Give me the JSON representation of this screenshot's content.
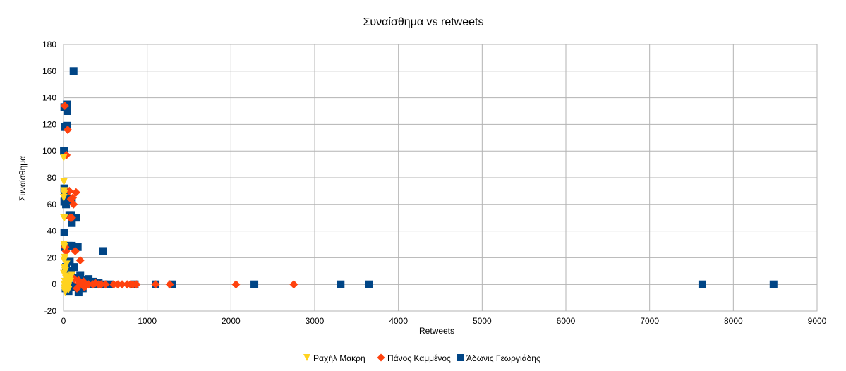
{
  "chart_data": {
    "type": "scatter",
    "title": "Συναίσθημα vs retweets",
    "xlabel": "Retweets",
    "ylabel": "Συναίσθημα",
    "xlim": [
      0,
      9000
    ],
    "ylim": [
      -20,
      180
    ],
    "xticks": [
      0,
      1000,
      2000,
      3000,
      4000,
      5000,
      6000,
      7000,
      8000,
      9000
    ],
    "yticks": [
      -20,
      0,
      20,
      40,
      60,
      80,
      100,
      120,
      140,
      160,
      180
    ],
    "grid": true,
    "legend_position": "bottom",
    "series": [
      {
        "name": "Ραχήλ Μακρή",
        "color": "#ffd320",
        "marker": "triangle-down",
        "points": [
          [
            2,
            95
          ],
          [
            5,
            77
          ],
          [
            8,
            70
          ],
          [
            10,
            68
          ],
          [
            3,
            65
          ],
          [
            12,
            50
          ],
          [
            4,
            50
          ],
          [
            6,
            30
          ],
          [
            9,
            28
          ],
          [
            7,
            18
          ],
          [
            15,
            12
          ],
          [
            20,
            10
          ],
          [
            5,
            8
          ],
          [
            25,
            6
          ],
          [
            30,
            4
          ],
          [
            18,
            2
          ],
          [
            10,
            0
          ],
          [
            40,
            -1
          ],
          [
            55,
            -2
          ],
          [
            12,
            -3
          ],
          [
            20,
            -5
          ],
          [
            70,
            5
          ],
          [
            100,
            7
          ],
          [
            60,
            -4
          ],
          [
            35,
            15
          ],
          [
            45,
            3
          ],
          [
            22,
            -6
          ],
          [
            80,
            2
          ],
          [
            15,
            20
          ],
          [
            50,
            0
          ]
        ]
      },
      {
        "name": "Πάνος Καμμένος",
        "color": "#ff420e",
        "marker": "diamond",
        "points": [
          [
            15,
            134
          ],
          [
            50,
            116
          ],
          [
            35,
            97
          ],
          [
            70,
            70
          ],
          [
            150,
            69
          ],
          [
            90,
            64
          ],
          [
            110,
            65
          ],
          [
            120,
            60
          ],
          [
            80,
            50
          ],
          [
            100,
            50
          ],
          [
            20,
            28
          ],
          [
            140,
            25
          ],
          [
            200,
            18
          ],
          [
            30,
            25
          ],
          [
            60,
            5
          ],
          [
            180,
            3
          ],
          [
            220,
            0
          ],
          [
            250,
            -2
          ],
          [
            300,
            0
          ],
          [
            350,
            0
          ],
          [
            380,
            1
          ],
          [
            420,
            0
          ],
          [
            450,
            0
          ],
          [
            500,
            0
          ],
          [
            600,
            0
          ],
          [
            650,
            0
          ],
          [
            700,
            0
          ],
          [
            760,
            0
          ],
          [
            800,
            0
          ],
          [
            830,
            0
          ],
          [
            870,
            0
          ],
          [
            1100,
            0
          ],
          [
            1270,
            0
          ],
          [
            2060,
            0
          ],
          [
            2750,
            0
          ],
          [
            160,
            -3
          ],
          [
            240,
            2
          ],
          [
            270,
            -1
          ],
          [
            130,
            4
          ],
          [
            190,
            1
          ]
        ]
      },
      {
        "name": "Άδωνις Γεωργιάδης",
        "color": "#004586",
        "marker": "square",
        "points": [
          [
            120,
            160
          ],
          [
            40,
            135
          ],
          [
            45,
            130
          ],
          [
            10,
            133
          ],
          [
            40,
            119
          ],
          [
            20,
            118
          ],
          [
            5,
            100
          ],
          [
            10,
            72
          ],
          [
            20,
            67
          ],
          [
            55,
            64
          ],
          [
            100,
            63
          ],
          [
            10,
            62
          ],
          [
            30,
            60
          ],
          [
            70,
            52
          ],
          [
            90,
            52
          ],
          [
            150,
            50
          ],
          [
            100,
            46
          ],
          [
            10,
            39
          ],
          [
            20,
            28
          ],
          [
            60,
            29
          ],
          [
            100,
            29
          ],
          [
            170,
            28
          ],
          [
            470,
            25
          ],
          [
            75,
            17
          ],
          [
            30,
            13
          ],
          [
            130,
            13
          ],
          [
            90,
            10
          ],
          [
            200,
            7
          ],
          [
            270,
            3
          ],
          [
            300,
            4
          ],
          [
            330,
            0
          ],
          [
            350,
            2
          ],
          [
            380,
            0
          ],
          [
            420,
            1
          ],
          [
            480,
            0
          ],
          [
            550,
            0
          ],
          [
            850,
            0
          ],
          [
            1100,
            0
          ],
          [
            1300,
            0
          ],
          [
            2280,
            0
          ],
          [
            3310,
            0
          ],
          [
            3650,
            0
          ],
          [
            7630,
            0
          ],
          [
            8480,
            0
          ],
          [
            180,
            -6
          ],
          [
            60,
            -5
          ],
          [
            25,
            -3
          ],
          [
            140,
            -2
          ],
          [
            230,
            -3
          ],
          [
            90,
            -1
          ],
          [
            160,
            5
          ],
          [
            45,
            8
          ]
        ]
      }
    ]
  }
}
